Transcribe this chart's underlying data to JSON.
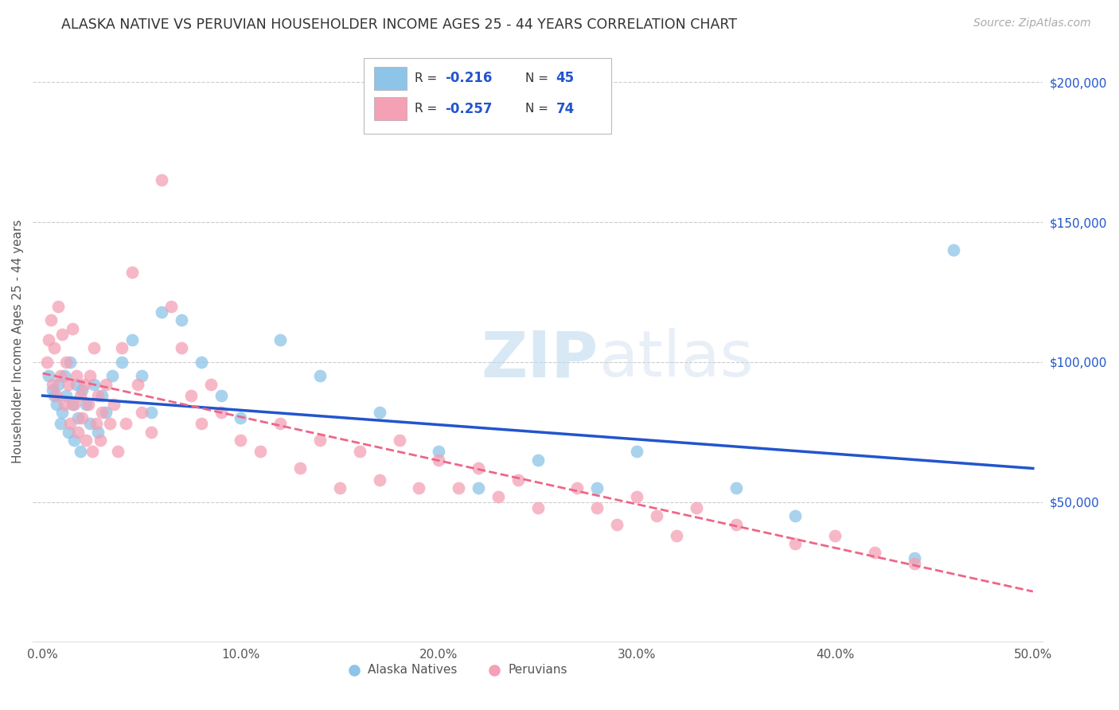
{
  "title": "ALASKA NATIVE VS PERUVIAN HOUSEHOLDER INCOME AGES 25 - 44 YEARS CORRELATION CHART",
  "source": "Source: ZipAtlas.com",
  "ylabel": "Householder Income Ages 25 - 44 years",
  "xlabel_ticks": [
    "0.0%",
    "10.0%",
    "20.0%",
    "30.0%",
    "40.0%",
    "50.0%"
  ],
  "xlabel_vals": [
    0.0,
    0.1,
    0.2,
    0.3,
    0.4,
    0.5
  ],
  "ylabel_ticks": [
    "$50,000",
    "$100,000",
    "$150,000",
    "$200,000"
  ],
  "ylabel_vals": [
    50000,
    100000,
    150000,
    200000
  ],
  "ylim": [
    0,
    215000
  ],
  "xlim": [
    -0.005,
    0.505
  ],
  "watermark_zip": "ZIP",
  "watermark_atlas": "atlas",
  "alaska_R": "-0.216",
  "alaska_N": "45",
  "peruvian_R": "-0.257",
  "peruvian_N": "74",
  "alaska_color": "#8DC4E8",
  "peruvian_color": "#F4A0B5",
  "alaska_line_color": "#2255CC",
  "peruvian_line_color": "#EE6688",
  "background_color": "#FFFFFF",
  "grid_color": "#CCCCCC",
  "alaska_x": [
    0.003,
    0.005,
    0.006,
    0.007,
    0.008,
    0.009,
    0.01,
    0.011,
    0.012,
    0.013,
    0.014,
    0.015,
    0.016,
    0.017,
    0.018,
    0.019,
    0.02,
    0.022,
    0.024,
    0.026,
    0.028,
    0.03,
    0.032,
    0.035,
    0.04,
    0.045,
    0.05,
    0.055,
    0.06,
    0.07,
    0.08,
    0.09,
    0.1,
    0.12,
    0.14,
    0.17,
    0.2,
    0.22,
    0.25,
    0.28,
    0.3,
    0.35,
    0.38,
    0.44,
    0.46
  ],
  "alaska_y": [
    95000,
    90000,
    88000,
    85000,
    92000,
    78000,
    82000,
    95000,
    88000,
    75000,
    100000,
    85000,
    72000,
    92000,
    80000,
    68000,
    90000,
    85000,
    78000,
    92000,
    75000,
    88000,
    82000,
    95000,
    100000,
    108000,
    95000,
    82000,
    118000,
    115000,
    100000,
    88000,
    80000,
    108000,
    95000,
    82000,
    68000,
    55000,
    65000,
    55000,
    68000,
    55000,
    45000,
    30000,
    140000
  ],
  "peruvian_x": [
    0.002,
    0.003,
    0.004,
    0.005,
    0.006,
    0.007,
    0.008,
    0.009,
    0.01,
    0.011,
    0.012,
    0.013,
    0.014,
    0.015,
    0.016,
    0.017,
    0.018,
    0.019,
    0.02,
    0.021,
    0.022,
    0.023,
    0.024,
    0.025,
    0.026,
    0.027,
    0.028,
    0.029,
    0.03,
    0.032,
    0.034,
    0.036,
    0.038,
    0.04,
    0.042,
    0.045,
    0.048,
    0.05,
    0.055,
    0.06,
    0.065,
    0.07,
    0.075,
    0.08,
    0.085,
    0.09,
    0.1,
    0.11,
    0.12,
    0.13,
    0.14,
    0.15,
    0.16,
    0.17,
    0.18,
    0.19,
    0.2,
    0.21,
    0.22,
    0.23,
    0.24,
    0.25,
    0.27,
    0.28,
    0.29,
    0.3,
    0.31,
    0.32,
    0.33,
    0.35,
    0.38,
    0.4,
    0.42,
    0.44
  ],
  "peruvian_y": [
    100000,
    108000,
    115000,
    92000,
    105000,
    88000,
    120000,
    95000,
    110000,
    85000,
    100000,
    92000,
    78000,
    112000,
    85000,
    95000,
    75000,
    88000,
    80000,
    92000,
    72000,
    85000,
    95000,
    68000,
    105000,
    78000,
    88000,
    72000,
    82000,
    92000,
    78000,
    85000,
    68000,
    105000,
    78000,
    132000,
    92000,
    82000,
    75000,
    165000,
    120000,
    105000,
    88000,
    78000,
    92000,
    82000,
    72000,
    68000,
    78000,
    62000,
    72000,
    55000,
    68000,
    58000,
    72000,
    55000,
    65000,
    55000,
    62000,
    52000,
    58000,
    48000,
    55000,
    48000,
    42000,
    52000,
    45000,
    38000,
    48000,
    42000,
    35000,
    38000,
    32000,
    28000
  ],
  "alaska_trend_x": [
    0.0,
    0.5
  ],
  "alaska_trend_y": [
    88000,
    62000
  ],
  "peruvian_trend_x": [
    0.0,
    0.5
  ],
  "peruvian_trend_y": [
    96000,
    18000
  ]
}
